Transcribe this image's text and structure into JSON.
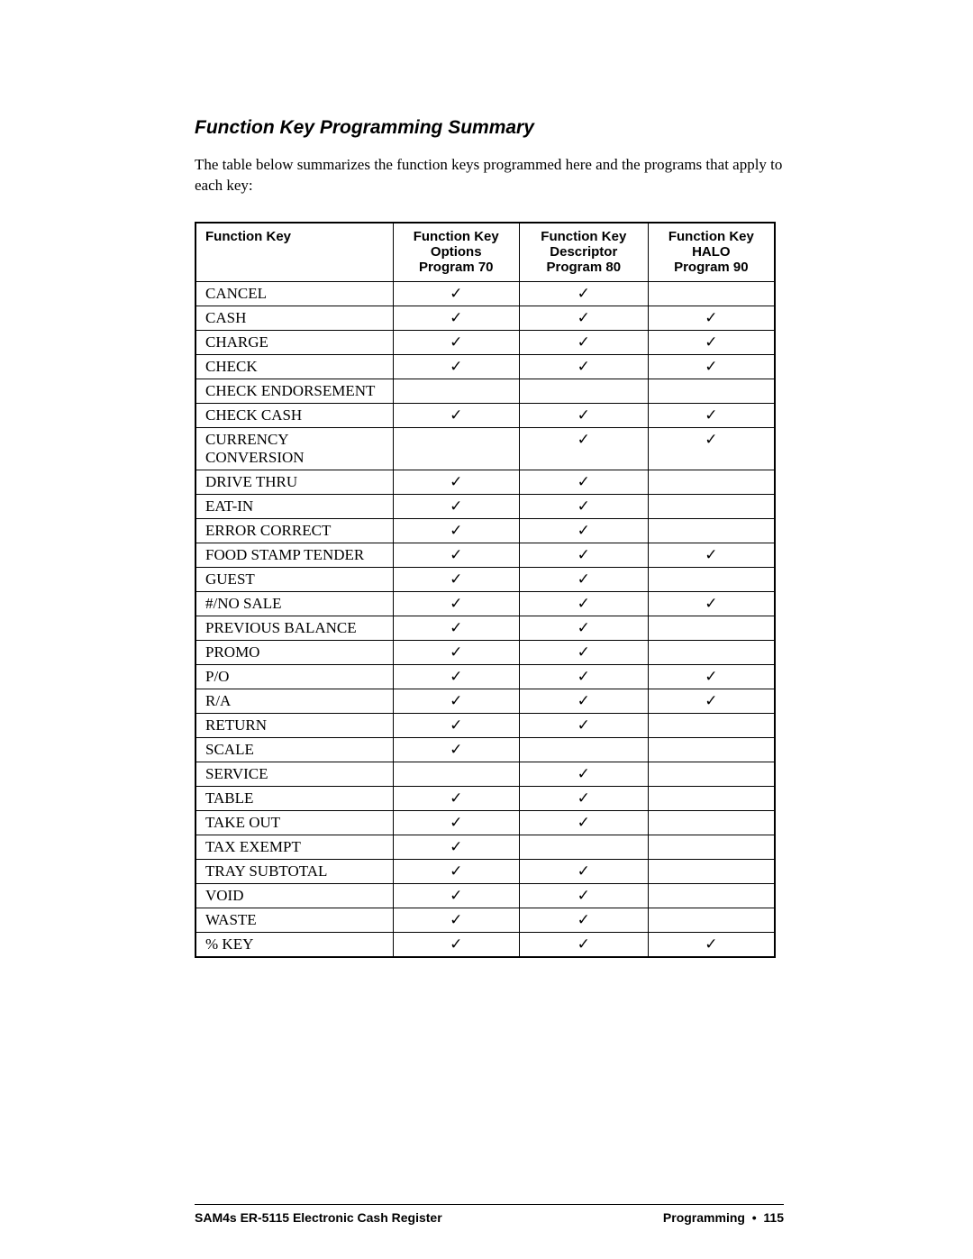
{
  "section_title": "Function Key Programming Summary",
  "intro": "The table below summarizes the function keys programmed here and the programs that apply to each key:",
  "table": {
    "headers": {
      "col0": "Function Key",
      "col1": {
        "l1": "Function Key",
        "l2": "Options",
        "l3": "Program 70"
      },
      "col2": {
        "l1": "Function Key",
        "l2": "Descriptor",
        "l3": "Program 80"
      },
      "col3": {
        "l1": "Function Key",
        "l2": "HALO",
        "l3": "Program 90"
      }
    },
    "check": "✓",
    "rows": [
      {
        "name": "CANCEL",
        "p70": true,
        "p80": true,
        "p90": false
      },
      {
        "name": "CASH",
        "p70": true,
        "p80": true,
        "p90": true
      },
      {
        "name": "CHARGE",
        "p70": true,
        "p80": true,
        "p90": true
      },
      {
        "name": "CHECK",
        "p70": true,
        "p80": true,
        "p90": true
      },
      {
        "name": "CHECK ENDORSEMENT",
        "p70": false,
        "p80": false,
        "p90": false
      },
      {
        "name": "CHECK CASH",
        "p70": true,
        "p80": true,
        "p90": true
      },
      {
        "name": "CURRENCY CONVERSION",
        "p70": false,
        "p80": true,
        "p90": true
      },
      {
        "name": "DRIVE THRU",
        "p70": true,
        "p80": true,
        "p90": false
      },
      {
        "name": "EAT-IN",
        "p70": true,
        "p80": true,
        "p90": false
      },
      {
        "name": "ERROR CORRECT",
        "p70": true,
        "p80": true,
        "p90": false
      },
      {
        "name": "FOOD STAMP TENDER",
        "p70": true,
        "p80": true,
        "p90": true
      },
      {
        "name": "GUEST",
        "p70": true,
        "p80": true,
        "p90": false
      },
      {
        "name": "#/NO SALE",
        "p70": true,
        "p80": true,
        "p90": true
      },
      {
        "name": "PREVIOUS BALANCE",
        "p70": true,
        "p80": true,
        "p90": false
      },
      {
        "name": "PROMO",
        "p70": true,
        "p80": true,
        "p90": false
      },
      {
        "name": "P/O",
        "p70": true,
        "p80": true,
        "p90": true
      },
      {
        "name": "R/A",
        "p70": true,
        "p80": true,
        "p90": true
      },
      {
        "name": "RETURN",
        "p70": true,
        "p80": true,
        "p90": false
      },
      {
        "name": "SCALE",
        "p70": true,
        "p80": false,
        "p90": false
      },
      {
        "name": "SERVICE",
        "p70": false,
        "p80": true,
        "p90": false
      },
      {
        "name": "TABLE",
        "p70": true,
        "p80": true,
        "p90": false
      },
      {
        "name": "TAKE OUT",
        "p70": true,
        "p80": true,
        "p90": false
      },
      {
        "name": "TAX EXEMPT",
        "p70": true,
        "p80": false,
        "p90": false
      },
      {
        "name": "TRAY SUBTOTAL",
        "p70": true,
        "p80": true,
        "p90": false
      },
      {
        "name": "VOID",
        "p70": true,
        "p80": true,
        "p90": false
      },
      {
        "name": "WASTE",
        "p70": true,
        "p80": true,
        "p90": false
      },
      {
        "name": "% KEY",
        "p70": true,
        "p80": true,
        "p90": true
      }
    ]
  },
  "footer": {
    "left": "SAM4s ER-5115 Electronic Cash Register",
    "right_label": "Programming",
    "bullet": "•",
    "page": "115"
  }
}
